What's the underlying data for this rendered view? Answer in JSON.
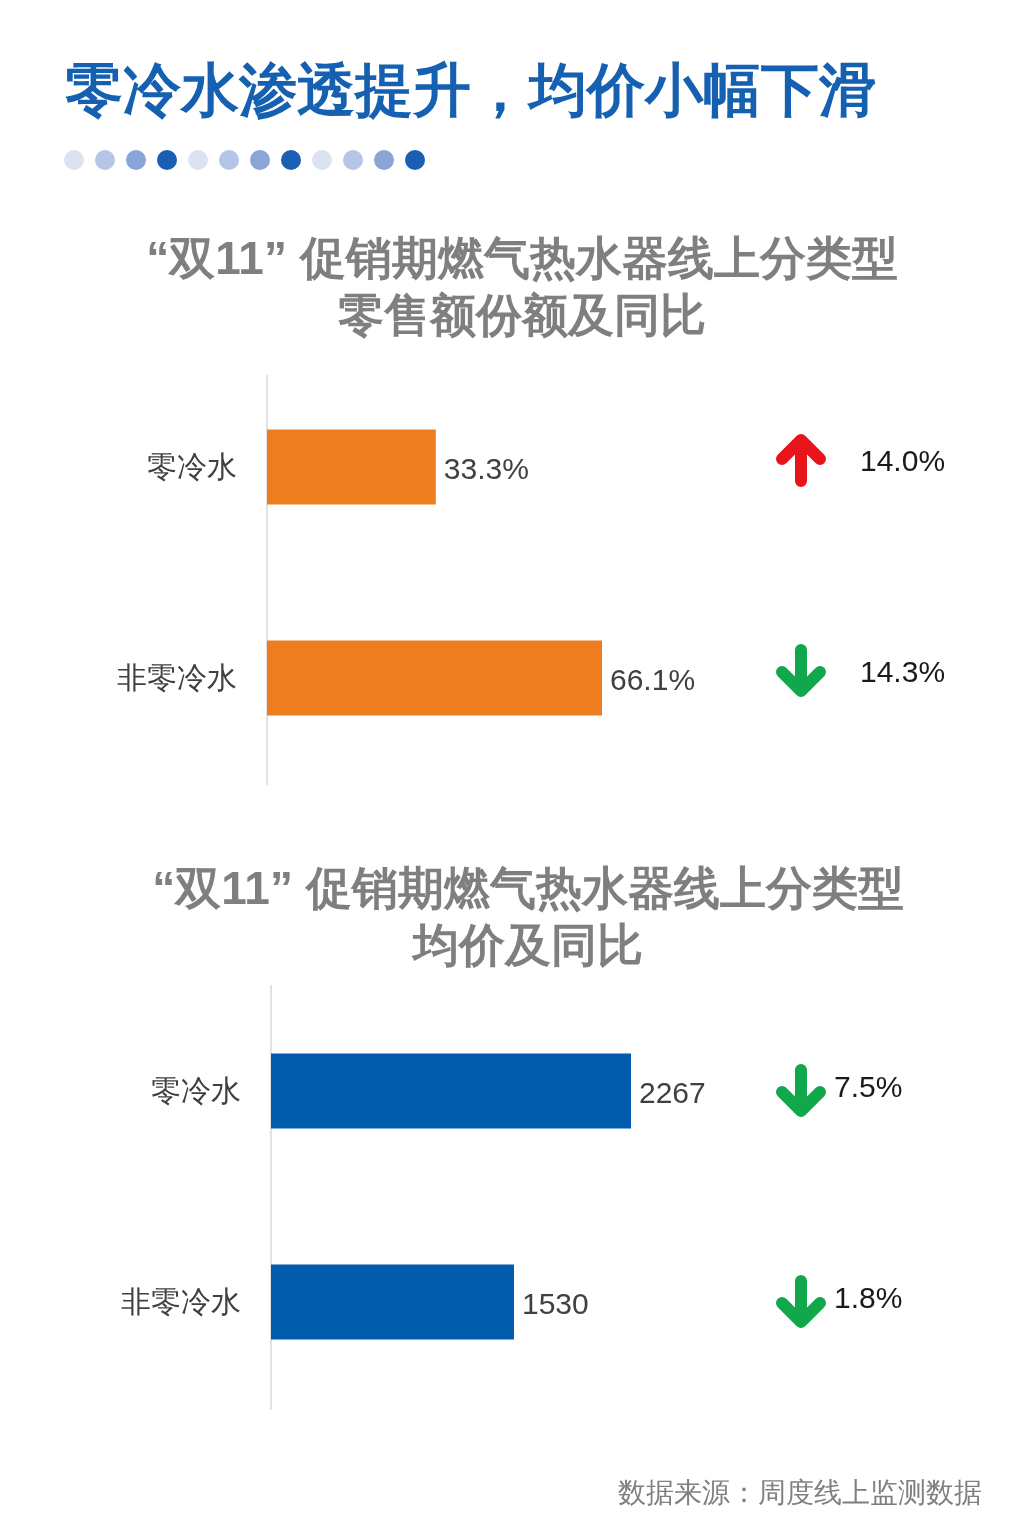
{
  "chart_data": [
    {
      "type": "bar",
      "orientation": "horizontal",
      "title": "零冷水渗透提升，均价小幅下滑",
      "subtitle": "“双11” 促销期燃气热水器线上分类型零售额份额及同比",
      "categories": [
        "零冷水",
        "非零冷水"
      ],
      "series": [
        {
          "color": "#ed7d1f",
          "values": [
            33.3,
            66.1
          ],
          "value_labels": [
            "33.3%",
            "66.1%"
          ]
        }
      ],
      "tick_labels": "y",
      "annotations": [
        "14.0%",
        "14.3%"
      ]
    },
    {
      "type": "bar",
      "orientation": "horizontal",
      "subtitle": "“双11” 促销期燃气热水器线上分类型均价及同比",
      "categories": [
        "零冷水",
        "非零冷水"
      ],
      "series": [
        {
          "color": "#005bac",
          "values": [
            2267,
            1530
          ]
        }
      ],
      "data_labels": true,
      "tick_labels": "y",
      "annotations": [
        "7.5%",
        "1.8%",
        "数据来源：周度线上监测数据"
      ]
    }
  ]
}
